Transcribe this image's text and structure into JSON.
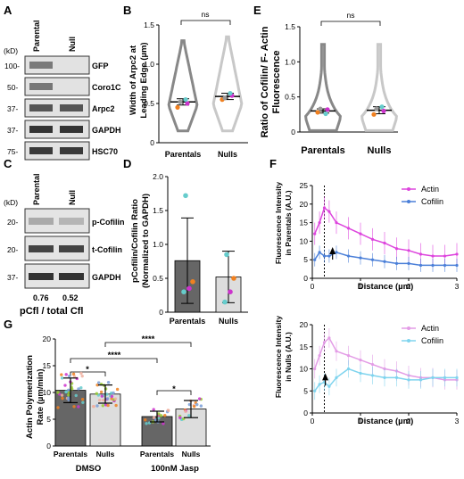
{
  "panels": {
    "A": {
      "letter": "A",
      "kd_label": "(kD)",
      "lanes": [
        "Parental",
        "Null"
      ],
      "markers": [
        "100-",
        "50-",
        "37-",
        "37-",
        "75-"
      ],
      "bands": [
        "GFP",
        "Coro1C",
        "Arpc2",
        "GAPDH",
        "HSC70"
      ]
    },
    "B": {
      "letter": "B",
      "ylabel_line1": "Width of Arpc2 at",
      "ylabel_line2": "Leading Edge (µm)",
      "sig": "ns"
    },
    "C": {
      "letter": "C",
      "kd_label": "(kD)",
      "lanes": [
        "Parental",
        "Null"
      ],
      "markers": [
        "20-",
        "20-",
        "37-"
      ],
      "bands": [
        "p-Cofilin",
        "t-Cofilin",
        "GAPDH"
      ],
      "quant_values": [
        "0.76",
        "0.52"
      ],
      "quant_label": "pCfl / total Cfl"
    },
    "D": {
      "letter": "D",
      "ylabel_line1": "pCofilin/Cofilin Ratio",
      "ylabel_line2": "(Normalized to GAPDH)"
    },
    "E": {
      "letter": "E",
      "ylabel_line1": "Ratio of Cofilin/ F- Actin",
      "ylabel_line2": "Fluorescence",
      "sig": "ns"
    },
    "F": {
      "letter": "F",
      "top_ylabel_line1": "Fluorescence Intensity",
      "top_ylabel_line2": "in Parentals (A.U.)",
      "bottom_ylabel_line1": "Fluorescence Intensity",
      "bottom_ylabel_line2": "in Nulls (A.U.)",
      "xlabel": "Distance (µm)"
    },
    "G": {
      "letter": "G",
      "ylabel_line1": "Actin Polymerization",
      "ylabel_line2": "Rate (µm/min)",
      "group_labels": [
        "DMSO",
        "100nM Jasp"
      ],
      "sig_labels": [
        "*",
        "****",
        "****",
        "*"
      ]
    }
  },
  "chart_data": [
    {
      "id": "B",
      "type": "violin",
      "categories": [
        "Parentals",
        "Nulls"
      ],
      "means": [
        0.52,
        0.59
      ],
      "sem": [
        0.04,
        0.04
      ],
      "replicate_means": [
        [
          0.45,
          0.5,
          0.55,
          0.52
        ],
        [
          0.55,
          0.6,
          0.63,
          0.57
        ]
      ],
      "ylim": [
        0,
        1.5
      ],
      "yticks": [
        0,
        0.5,
        1.0,
        1.5
      ],
      "violin_range": [
        [
          0.15,
          1.3
        ],
        [
          0.15,
          1.35
        ]
      ],
      "colors": [
        "#888888",
        "#c8c8c8"
      ],
      "replicate_colors": [
        "#f08020",
        "#cc33cc",
        "#66cccc",
        "#999999"
      ]
    },
    {
      "id": "D",
      "type": "bar",
      "categories": [
        "Parentals",
        "Nulls"
      ],
      "values": [
        0.76,
        0.52
      ],
      "sd": [
        0.63,
        0.38
      ],
      "points": [
        [
          0.3,
          0.45,
          0.35,
          1.72
        ],
        [
          0.15,
          0.5,
          0.3,
          0.85
        ]
      ],
      "ylim": [
        0,
        2.0
      ],
      "yticks": [
        0,
        0.5,
        1.0,
        1.5,
        2.0
      ],
      "colors": [
        "#666666",
        "#dddddd"
      ],
      "point_colors": [
        "#66cccc",
        "#f08020",
        "#cc33cc",
        "#66cccc"
      ]
    },
    {
      "id": "E",
      "type": "violin",
      "categories": [
        "Parentals",
        "Nulls"
      ],
      "means": [
        0.3,
        0.31
      ],
      "sem": [
        0.03,
        0.05
      ],
      "replicate_means": [
        [
          0.28,
          0.32,
          0.26,
          0.33
        ],
        [
          0.25,
          0.3,
          0.36,
          0.33
        ]
      ],
      "ylim": [
        0,
        1.5
      ],
      "yticks": [
        0,
        0.5,
        1.0,
        1.5
      ],
      "violin_range": [
        [
          0.02,
          1.25
        ],
        [
          0.02,
          1.25
        ]
      ],
      "colors": [
        "#888888",
        "#c8c8c8"
      ],
      "replicate_colors": [
        "#f08020",
        "#cc33cc",
        "#66cccc",
        "#999999"
      ]
    },
    {
      "id": "F_top",
      "type": "line",
      "x": [
        0.05,
        0.15,
        0.25,
        0.35,
        0.5,
        0.75,
        1.0,
        1.25,
        1.5,
        1.75,
        2.0,
        2.25,
        2.5,
        2.75,
        3.0
      ],
      "series": [
        {
          "name": "Actin",
          "values": [
            12,
            15,
            19,
            18,
            15,
            13.5,
            12,
            10.5,
            9.5,
            8,
            7.5,
            6.5,
            6,
            6,
            6.5
          ],
          "err": 3,
          "color": "#dd44dd"
        },
        {
          "name": "Cofilin",
          "values": [
            5,
            7,
            6,
            6,
            7,
            6,
            5.5,
            5,
            4.5,
            4,
            4,
            3.5,
            3.5,
            3.5,
            3.5
          ],
          "err": 1.8,
          "color": "#4a7fd8"
        }
      ],
      "ylim": [
        0,
        25
      ],
      "yticks": [
        0,
        5,
        10,
        15,
        20,
        25
      ],
      "xlim": [
        0,
        3
      ],
      "xticks": [
        0,
        1,
        2,
        3
      ],
      "marker_line_x": 0.25,
      "arrow_x": 0.42
    },
    {
      "id": "F_bottom",
      "type": "line",
      "x": [
        0.05,
        0.15,
        0.25,
        0.35,
        0.5,
        0.75,
        1.0,
        1.25,
        1.5,
        1.75,
        2.0,
        2.25,
        2.5,
        2.75,
        3.0
      ],
      "series": [
        {
          "name": "Actin",
          "values": [
            10,
            13,
            16,
            17,
            14,
            13,
            12,
            11,
            10,
            9.5,
            8.5,
            8,
            8,
            7.5,
            7.5
          ],
          "err": 2.2,
          "color": "#e39ce6"
        },
        {
          "name": "Cofilin",
          "values": [
            5,
            6.5,
            7,
            6,
            8,
            10,
            9,
            8.5,
            8,
            8,
            7.5,
            7.5,
            8,
            8,
            8
          ],
          "err": 2,
          "color": "#7fd4ee"
        }
      ],
      "ylim": [
        0,
        20
      ],
      "yticks": [
        0,
        5,
        10,
        15,
        20
      ],
      "xlim": [
        0,
        3
      ],
      "xticks": [
        0,
        1,
        2,
        3
      ],
      "marker_line_x": 0.25,
      "arrow_x": 0.27
    },
    {
      "id": "G",
      "type": "bar",
      "categories": [
        "Parentals",
        "Nulls",
        "Parentals",
        "Nulls"
      ],
      "values": [
        10.4,
        9.7,
        5.5,
        6.9
      ],
      "sd": [
        2.3,
        1.7,
        1.0,
        1.6
      ],
      "ylim": [
        0,
        20
      ],
      "yticks": [
        0,
        5,
        10,
        15,
        20
      ],
      "colors": [
        "#666666",
        "#dddddd",
        "#666666",
        "#dddddd"
      ]
    }
  ]
}
